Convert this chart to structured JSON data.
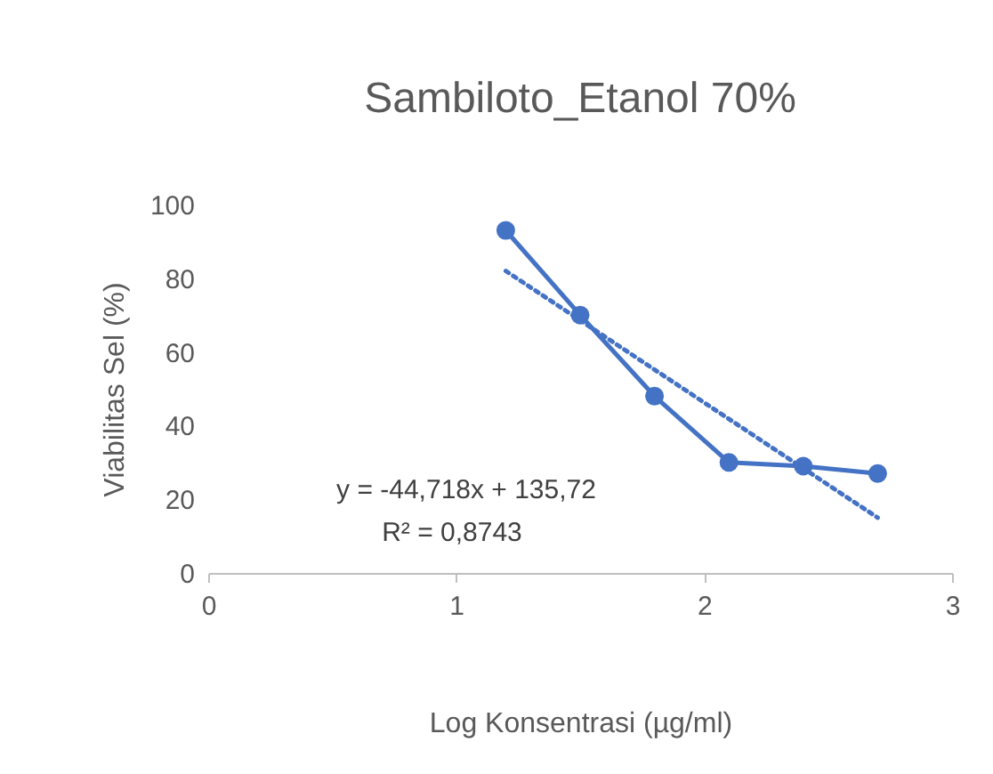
{
  "chart_data": {
    "type": "line",
    "title": "Sambiloto_Etanol 70%",
    "xlabel": "Log Konsentrasi (µg/ml)",
    "ylabel": "Viabilitas Sel (%)",
    "series": [
      {
        "color": "#4472c4",
        "x": [
          1.2,
          1.5,
          1.8,
          2.1,
          2.4,
          2.7
        ],
        "values": [
          93,
          70,
          48,
          30,
          29,
          27
        ],
        "marker": "circle",
        "line_style": "solid"
      },
      {
        "color": "#4472c4",
        "x": [
          1.2,
          2.7
        ],
        "values": [
          82,
          15
        ],
        "marker": "none",
        "line_style": "dotted"
      }
    ],
    "annotations": [
      "y = -44,718x + 135,72",
      "R² = 0,8743"
    ],
    "xlim": [
      0,
      3
    ],
    "xticks": [
      0,
      1,
      2,
      3
    ],
    "ylim": [
      0,
      100
    ],
    "yticks": [
      0,
      20,
      40,
      60,
      80,
      100
    ],
    "grid": false
  }
}
